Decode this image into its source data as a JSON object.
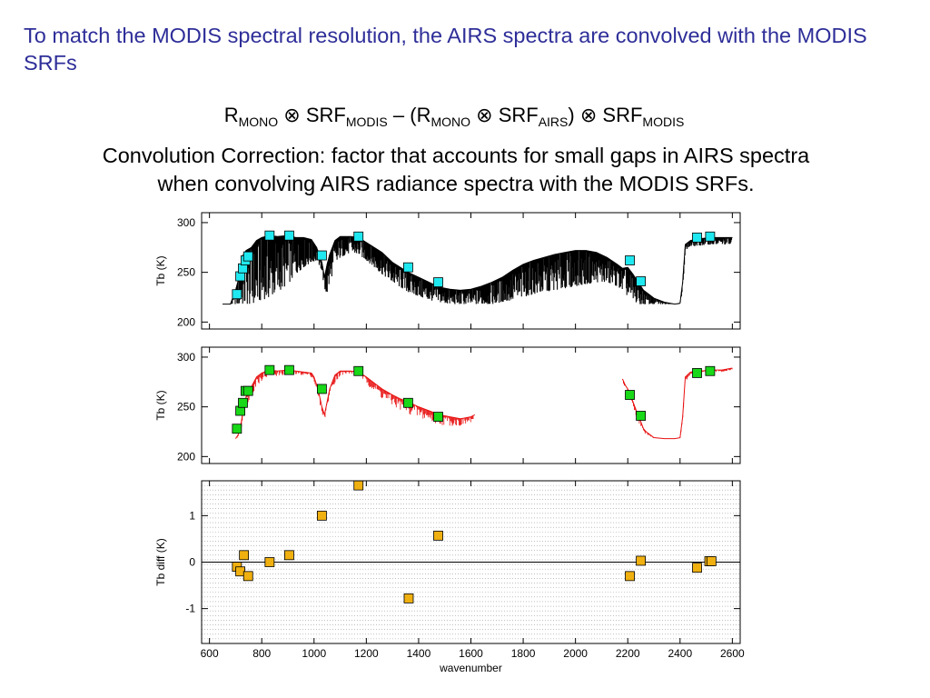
{
  "slide": {
    "intro": "To match the MODIS spectral resolution, the AIRS spectra are convolved with the MODIS SRFs",
    "formula": {
      "r": "R",
      "mono": "MONO",
      "otimes": "⊗",
      "srf": "SRF",
      "modis": "MODIS",
      "minus": "–",
      "open_paren": "(",
      "close_paren": ")",
      "airs": "AIRS"
    },
    "note_line1": "Convolution Correction: factor that accounts for small gaps in AIRS spectra",
    "note_line2": "when convolving AIRS radiance spectra with the MODIS SRFs."
  },
  "colors": {
    "title_text": "#2e2e99",
    "spectrum_black": "#000000",
    "spectrum_red": "#e81010",
    "marker_cyan": "#20e8f0",
    "marker_green": "#18d818",
    "marker_orange": "#f0b010",
    "gridline": "#999999"
  },
  "chart_data": [
    {
      "type": "line",
      "xlabel": "",
      "ylabel": "Tb (K)",
      "xlim": [
        570,
        2630
      ],
      "ylim": [
        193,
        310
      ],
      "yticks": [
        200,
        250,
        300
      ],
      "grid": false,
      "series": [
        {
          "line_color": "black",
          "x": [
            650,
            680,
            690,
            700,
            710,
            720,
            730,
            740,
            760,
            780,
            800,
            830,
            860,
            900,
            930,
            960,
            990,
            1010,
            1030,
            1040,
            1050,
            1060,
            1080,
            1100,
            1140,
            1170,
            1200,
            1230,
            1260,
            1300,
            1330,
            1360,
            1400,
            1440,
            1480,
            1520,
            1560,
            1600,
            1640,
            1680,
            1720,
            1760,
            1800,
            1840,
            1880,
            1920,
            1960,
            2000,
            2040,
            2080,
            2120,
            2160,
            2180,
            2200,
            2220,
            2240,
            2260,
            2280,
            2300,
            2340,
            2380,
            2400,
            2410,
            2420,
            2440,
            2480,
            2520,
            2560,
            2600
          ],
          "y": [
            218,
            218,
            225,
            232,
            242,
            258,
            268,
            272,
            275,
            282,
            285,
            287,
            286,
            287,
            285,
            285,
            283,
            275,
            260,
            245,
            258,
            268,
            282,
            286,
            286,
            285,
            280,
            275,
            270,
            260,
            255,
            250,
            245,
            240,
            235,
            233,
            232,
            233,
            236,
            240,
            245,
            252,
            258,
            262,
            265,
            268,
            270,
            272,
            272,
            270,
            265,
            258,
            254,
            255,
            248,
            240,
            232,
            228,
            224,
            220,
            218,
            219,
            240,
            278,
            282,
            284,
            285,
            285,
            285
          ],
          "y_low": [
            218,
            218,
            218,
            218,
            218,
            218,
            218,
            218,
            218,
            220,
            222,
            225,
            230,
            238,
            248,
            255,
            260,
            262,
            252,
            232,
            228,
            240,
            255,
            265,
            270,
            268,
            262,
            255,
            248,
            240,
            235,
            230,
            226,
            222,
            220,
            218,
            218,
            218,
            218,
            218,
            220,
            222,
            225,
            228,
            230,
            232,
            234,
            236,
            238,
            240,
            240,
            236,
            232,
            226,
            222,
            218,
            218,
            218,
            218,
            218,
            218,
            218,
            230,
            272,
            276,
            277,
            278,
            278,
            278
          ]
        }
      ],
      "markers": {
        "x": [
          705,
          718,
          728,
          738,
          748,
          830,
          905,
          1030,
          1170,
          1360,
          1475,
          2208,
          2250,
          2465,
          2515
        ],
        "y": [
          228,
          246,
          254,
          262,
          266,
          287,
          287,
          267,
          286,
          255,
          240,
          262,
          241,
          285,
          286
        ],
        "color": "cyan"
      }
    },
    {
      "type": "line",
      "xlabel": "",
      "ylabel": "Tb (K)",
      "xlim": [
        570,
        2630
      ],
      "ylim": [
        193,
        310
      ],
      "yticks": [
        200,
        250,
        300
      ],
      "grid": false,
      "series": [
        {
          "line_color": "red",
          "segments": [
            {
              "x": [
                700,
                710,
                720,
                730,
                740,
                760,
                780,
                800,
                830,
                860,
                900,
                930,
                960,
                990,
                1000,
                1010,
                1020,
                1030,
                1040,
                1050,
                1060,
                1080,
                1100,
                1140,
                1170,
                1200,
                1230,
                1260,
                1300,
                1330,
                1360,
                1400,
                1440,
                1480,
                1520,
                1560,
                1600,
                1615
              ],
              "y": [
                218,
                222,
                232,
                248,
                260,
                270,
                280,
                284,
                287,
                286,
                287,
                286,
                285,
                284,
                280,
                272,
                262,
                250,
                242,
                255,
                268,
                282,
                286,
                286,
                285,
                280,
                274,
                268,
                262,
                258,
                255,
                250,
                246,
                242,
                240,
                238,
                240,
                242
              ],
              "y_low": [
                218,
                218,
                222,
                235,
                245,
                256,
                265,
                272,
                278,
                278,
                280,
                280,
                280,
                278,
                272,
                262,
                250,
                240,
                234,
                244,
                258,
                270,
                278,
                282,
                280,
                270,
                260,
                252,
                244,
                240,
                236,
                232,
                228,
                226,
                226,
                226,
                230,
                234
              ]
            },
            {
              "x": [
                2180,
                2190,
                2200,
                2210,
                2220,
                2230,
                2240,
                2250,
                2260,
                2270,
                2280,
                2300,
                2340,
                2380,
                2400,
                2410,
                2420,
                2440,
                2480,
                2520,
                2560,
                2600
              ],
              "y": [
                278,
                272,
                268,
                262,
                255,
                248,
                240,
                235,
                228,
                225,
                223,
                219,
                218,
                218,
                219,
                240,
                280,
                285,
                286,
                287,
                287,
                289
              ],
              "y_low": [
                272,
                266,
                260,
                252,
                245,
                238,
                232,
                226,
                222,
                220,
                219,
                218,
                218,
                218,
                218,
                228,
                272,
                280,
                282,
                284,
                284,
                286
              ]
            }
          ]
        }
      ],
      "markers": {
        "x": [
          705,
          718,
          728,
          738,
          748,
          830,
          905,
          1030,
          1170,
          1360,
          1475,
          2208,
          2250,
          2465,
          2515
        ],
        "y": [
          228,
          246,
          254,
          266,
          266,
          287,
          287,
          268,
          286,
          254,
          240,
          262,
          241,
          284,
          286
        ],
        "color": "green"
      }
    },
    {
      "type": "scatter",
      "xlabel": "wavenumber",
      "ylabel": "Tb diff (K)",
      "xlim": [
        570,
        2630
      ],
      "ylim": [
        -1.75,
        1.75
      ],
      "xticks": [
        600,
        800,
        1000,
        1200,
        1400,
        1600,
        1800,
        2000,
        2200,
        2400,
        2600
      ],
      "yticks": [
        -1,
        0,
        1
      ],
      "grid": true,
      "zero_line": true,
      "series": [
        {
          "marker_color": "orange",
          "x": [
            705,
            718,
            732,
            748,
            830,
            905,
            1030,
            1170,
            1362,
            1475,
            2208,
            2250,
            2465,
            2512,
            2520
          ],
          "y": [
            -0.1,
            -0.2,
            0.15,
            -0.3,
            0.0,
            0.15,
            1.0,
            1.65,
            -0.78,
            0.57,
            -0.3,
            0.03,
            -0.12,
            0.02,
            0.02
          ]
        }
      ]
    }
  ]
}
